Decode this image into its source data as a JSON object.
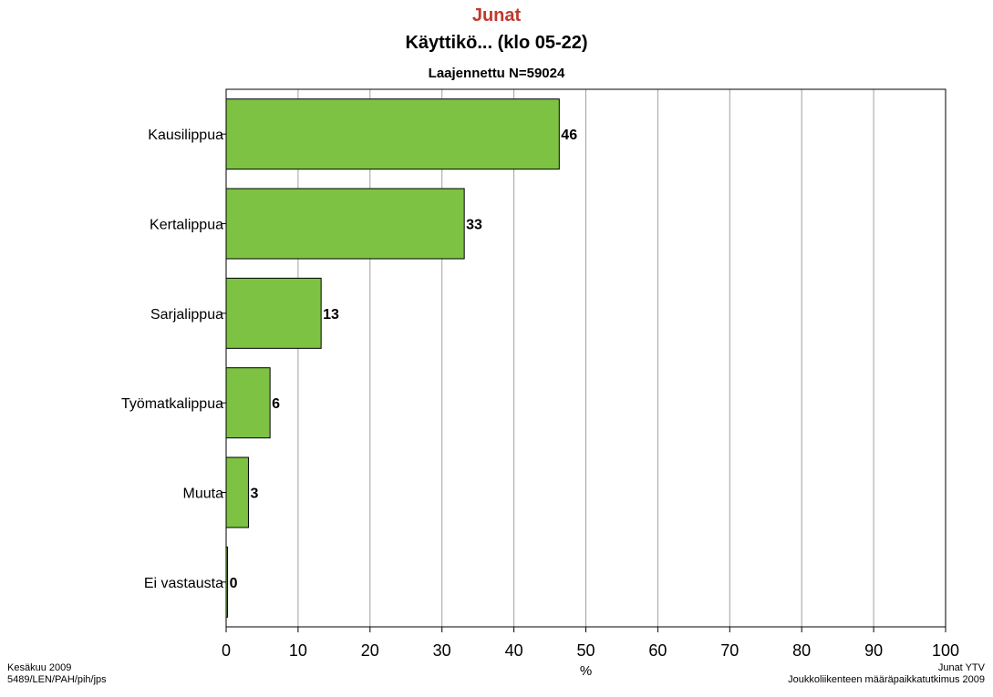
{
  "chart_data": {
    "type": "bar",
    "orientation": "horizontal",
    "title": "Junat",
    "subtitle": "Käyttikö... (klo 05-22)",
    "subtitle2": "Laajennettu N=59024",
    "categories": [
      "Kausilippua",
      "Kertalippua",
      "Sarjalippua",
      "Työmatkalippua",
      "Muuta",
      "Ei vastausta"
    ],
    "values": [
      46.3,
      33.1,
      13.2,
      6.1,
      3.1,
      0.2
    ],
    "value_labels": [
      "46",
      "33",
      "13",
      "6",
      "3",
      "0"
    ],
    "xlabel": "%",
    "xlim": [
      0,
      100
    ],
    "xticks": [
      0,
      10,
      20,
      30,
      40,
      50,
      60,
      70,
      80,
      90,
      100
    ],
    "grid": "vertical",
    "colors": {
      "bar": "#7dc242",
      "title": "#c0392b"
    }
  },
  "footer": {
    "left_line1": "Kesäkuu 2009",
    "left_line2": "5489/LEN/PAH/pih/jps",
    "right_line1": "Junat YTV",
    "right_line2": "Joukkoliikenteen määräpaikkatutkimus 2009"
  }
}
